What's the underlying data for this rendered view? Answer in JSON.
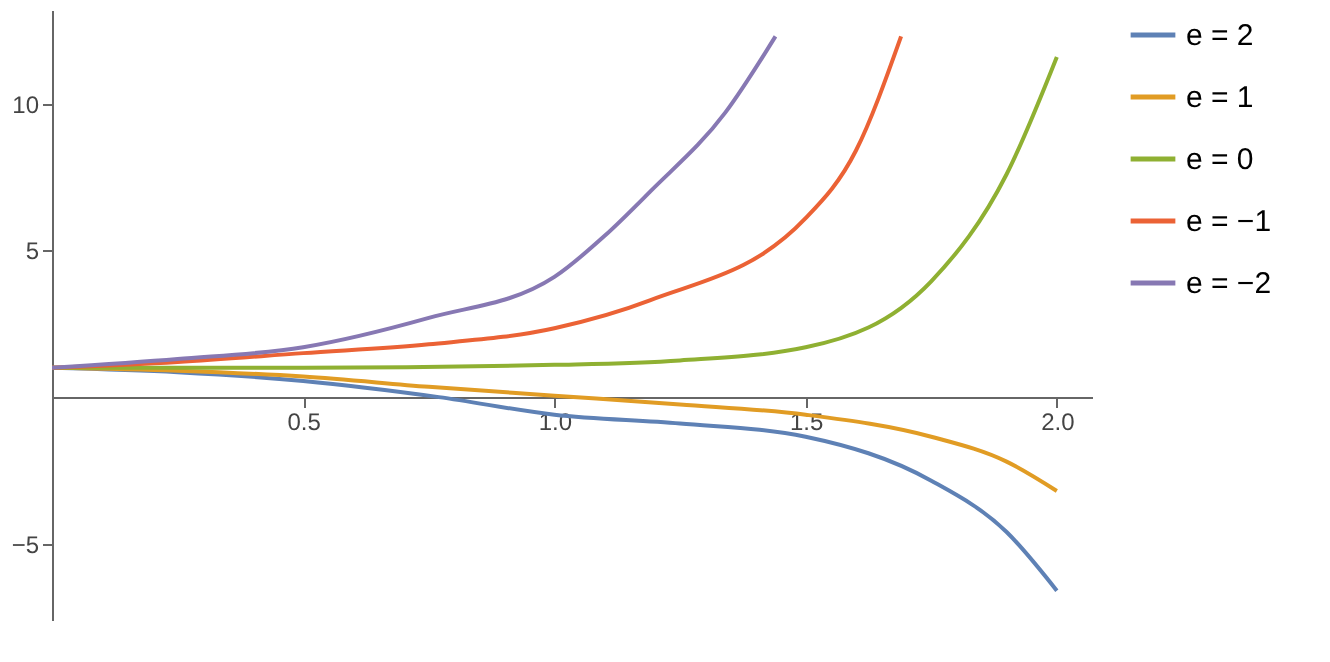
{
  "chart_data": {
    "type": "line",
    "xlim": [
      0,
      2.07
    ],
    "ylim": [
      -7.6,
      13.2
    ],
    "xticks": [
      {
        "value": 0.5,
        "label": "0.5"
      },
      {
        "value": 1,
        "label": "1.0"
      },
      {
        "value": 1.5,
        "label": "1.5"
      },
      {
        "value": 2,
        "label": "2.0"
      }
    ],
    "yticks": [
      -5,
      5,
      10
    ],
    "grid": false,
    "legend": "right",
    "line_style": "solid",
    "marker": "none",
    "series": [
      {
        "name": "e = 2",
        "color": "#5e81b5",
        "x": [
          0,
          0.25,
          0.5,
          0.77,
          1.0,
          1.25,
          1.5,
          1.75,
          1.9,
          2.0
        ],
        "values": [
          1,
          0.85,
          0.55,
          0,
          -0.6,
          -0.9,
          -1.35,
          -2.85,
          -4.6,
          -6.6
        ]
      },
      {
        "name": "e = 1",
        "color": "#e19c24",
        "x": [
          0,
          0.25,
          0.5,
          0.75,
          1.0,
          1.25,
          1.5,
          1.75,
          1.9,
          2.0
        ],
        "values": [
          1,
          0.9,
          0.7,
          0.35,
          0.05,
          -0.25,
          -0.6,
          -1.35,
          -2.2,
          -3.2
        ]
      },
      {
        "name": "e = 0",
        "color": "#8fb032",
        "x": [
          0,
          0.5,
          1.0,
          1.25,
          1.5,
          1.75,
          1.9,
          2.0
        ],
        "values": [
          1,
          1.0,
          1.1,
          1.25,
          1.7,
          3.95,
          7.6,
          11.6
        ]
      },
      {
        "name": "e = −1",
        "color": "#eb6235",
        "x": [
          0,
          0.25,
          0.5,
          0.75,
          1.0,
          1.19,
          1.5,
          1.6,
          1.69
        ],
        "values": [
          1,
          1.2,
          1.5,
          1.8,
          2.35,
          3.3,
          6.1,
          8.4,
          12.3
        ]
      },
      {
        "name": "e = −2",
        "color": "#8778b3",
        "x": [
          0,
          0.25,
          0.5,
          0.75,
          1.0,
          1.1,
          1.19,
          1.34,
          1.44
        ],
        "values": [
          1,
          1.3,
          1.7,
          2.7,
          4.1,
          5.5,
          7.0,
          9.7,
          12.3
        ]
      }
    ]
  }
}
